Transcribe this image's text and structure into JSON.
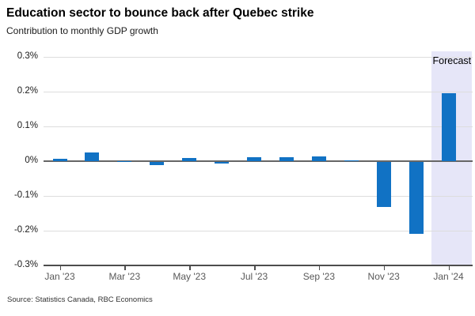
{
  "header": {
    "title": "Education sector to bounce back after Quebec strike",
    "subtitle": "Contribution to monthly GDP growth"
  },
  "source": "Source: Statistics Canada, RBC Economics",
  "colors": {
    "bar": "#1172C4",
    "forecast_band": "#E6E6F8",
    "gridline": "#DDDDDD",
    "zero_line": "#666666",
    "axis": "#4D4D4D",
    "x_label": "#595959",
    "y_label": "#1A1A1A"
  },
  "chart_data": {
    "type": "bar",
    "title": "Education sector to bounce back after Quebec strike",
    "subtitle": "Contribution to monthly GDP growth",
    "ylabel": "Contribution to monthly GDP growth (%)",
    "categories": [
      "Jan '23",
      "Feb '23",
      "Mar '23",
      "Apr '23",
      "May '23",
      "Jun '23",
      "Jul '23",
      "Aug '23",
      "Sep '23",
      "Oct '23",
      "Nov '23",
      "Dec '23",
      "Jan '24"
    ],
    "values": [
      0.006,
      0.024,
      0.001,
      -0.01,
      0.008,
      -0.005,
      0.011,
      0.011,
      0.013,
      0.003,
      -0.13,
      -0.207,
      0.195
    ],
    "ylim": [
      -0.3,
      0.3
    ],
    "y_ticks": [
      "0.3%",
      "0.2%",
      "0.1%",
      "0%",
      "-0.1%",
      "-0.2%",
      "-0.3%"
    ],
    "x_tick_labels": [
      "Jan '23",
      "Mar '23",
      "May '23",
      "Jul '23",
      "Sep '23",
      "Nov '23",
      "Jan '24"
    ],
    "x_tick_month_indices": [
      0,
      2,
      4,
      6,
      8,
      10,
      12
    ],
    "grid": "horizontal gridlines every 0.1%",
    "legend": "none",
    "forecast": {
      "label": "Forecast",
      "applies_to": [
        "Jan '24"
      ]
    }
  }
}
